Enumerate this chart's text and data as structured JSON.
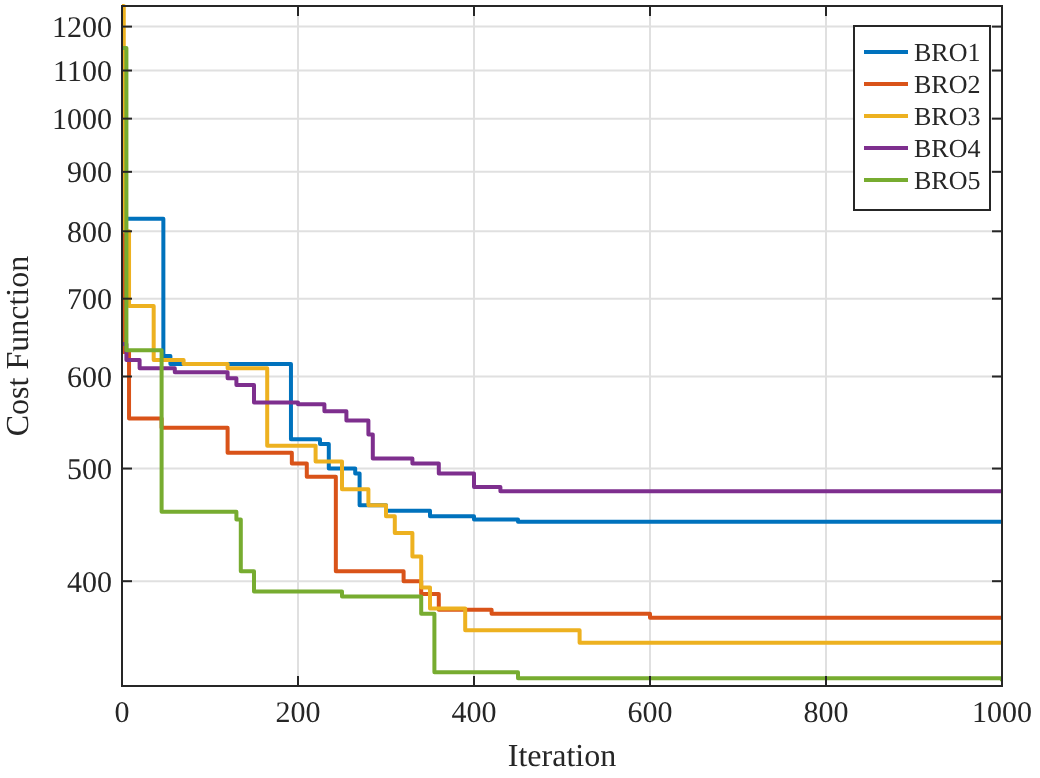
{
  "chart_data": {
    "type": "step",
    "xlabel": "Iteration",
    "ylabel": "Cost Function",
    "log": "y",
    "xlim": [
      0,
      1000
    ],
    "xticks": [
      0,
      200,
      400,
      600,
      800,
      1000
    ],
    "ylim": [
      325,
      1250
    ],
    "yticks": [
      400,
      500,
      600,
      700,
      800,
      900,
      1000,
      1100,
      1200
    ],
    "grid": true,
    "legend": "top right",
    "series": [
      {
        "name": "BRO1",
        "color": "#0072bd",
        "x": [
          0,
          3,
          45,
          47,
          55,
          190,
          192,
          225,
          235,
          265,
          270,
          300,
          350,
          400,
          450,
          1000
        ],
        "values": [
          900,
          820,
          820,
          625,
          615,
          615,
          530,
          525,
          500,
          495,
          465,
          460,
          455,
          452,
          450,
          450
        ]
      },
      {
        "name": "BRO2",
        "color": "#d95319",
        "x": [
          0,
          2,
          8,
          45,
          120,
          193,
          210,
          243,
          320,
          340,
          360,
          420,
          600,
          1000
        ],
        "values": [
          800,
          630,
          552,
          542,
          516,
          505,
          492,
          408,
          400,
          390,
          378,
          375,
          372,
          372
        ]
      },
      {
        "name": "BRO3",
        "color": "#edb120",
        "x": [
          0,
          2,
          8,
          36,
          70,
          120,
          165,
          220,
          250,
          280,
          300,
          310,
          330,
          340,
          350,
          390,
          520,
          1000
        ],
        "values": [
          1250,
          800,
          690,
          620,
          615,
          610,
          523,
          507,
          480,
          465,
          455,
          440,
          420,
          395,
          379,
          363,
          354,
          354
        ]
      },
      {
        "name": "BRO4",
        "color": "#7e2f8e",
        "x": [
          0,
          5,
          20,
          60,
          120,
          130,
          150,
          200,
          230,
          255,
          280,
          285,
          330,
          360,
          400,
          430,
          1000
        ],
        "values": [
          640,
          620,
          610,
          605,
          598,
          590,
          570,
          568,
          560,
          550,
          535,
          510,
          505,
          495,
          482,
          478,
          478
        ]
      },
      {
        "name": "BRO5",
        "color": "#77ac30",
        "x": [
          0,
          5,
          36,
          45,
          130,
          135,
          150,
          250,
          340,
          355,
          450,
          1000
        ],
        "values": [
          1150,
          632,
          632,
          459,
          452,
          408,
          392,
          388,
          375,
          334,
          330,
          328
        ]
      }
    ]
  }
}
